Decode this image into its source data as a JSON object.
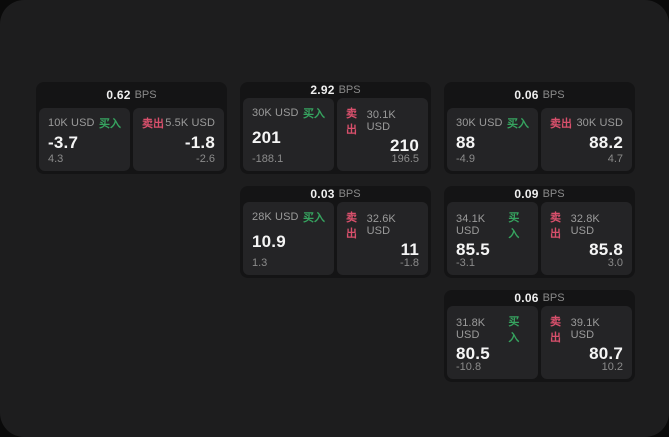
{
  "labels": {
    "unit": "BPS",
    "buy": "买入",
    "sell": "卖出"
  },
  "colors": {
    "buy_green": "#36a35f",
    "sell_red": "#d9506c",
    "panel_bg": "#1d1d1e",
    "card_bg": "#141415",
    "subcard_bg": "#242426"
  },
  "cards": [
    {
      "row": 1,
      "col": 1,
      "bps": "0.62",
      "buy": {
        "amount": "10K USD",
        "value": "-3.7",
        "delta": "4.3"
      },
      "sell": {
        "amount": "5.5K USD",
        "value": "-1.8",
        "delta": "-2.6"
      }
    },
    {
      "row": 1,
      "col": 2,
      "bps": "2.92",
      "buy": {
        "amount": "30K USD",
        "value": "201",
        "delta": "-188.1"
      },
      "sell": {
        "amount": "30.1K USD",
        "value": "210",
        "delta": "196.5"
      }
    },
    {
      "row": 1,
      "col": 3,
      "bps": "0.06",
      "buy": {
        "amount": "30K USD",
        "value": "88",
        "delta": "-4.9"
      },
      "sell": {
        "amount": "30K USD",
        "value": "88.2",
        "delta": "4.7"
      }
    },
    {
      "row": 2,
      "col": 2,
      "bps": "0.03",
      "buy": {
        "amount": "28K USD",
        "value": "10.9",
        "delta": "1.3"
      },
      "sell": {
        "amount": "32.6K USD",
        "value": "11",
        "delta": "-1.8"
      }
    },
    {
      "row": 2,
      "col": 3,
      "bps": "0.09",
      "buy": {
        "amount": "34.1K USD",
        "value": "85.5",
        "delta": "-3.1"
      },
      "sell": {
        "amount": "32.8K USD",
        "value": "85.8",
        "delta": "3.0"
      }
    },
    {
      "row": 3,
      "col": 3,
      "bps": "0.06",
      "buy": {
        "amount": "31.8K USD",
        "value": "80.5",
        "delta": "-10.8"
      },
      "sell": {
        "amount": "39.1K USD",
        "value": "80.7",
        "delta": "10.2"
      }
    }
  ]
}
